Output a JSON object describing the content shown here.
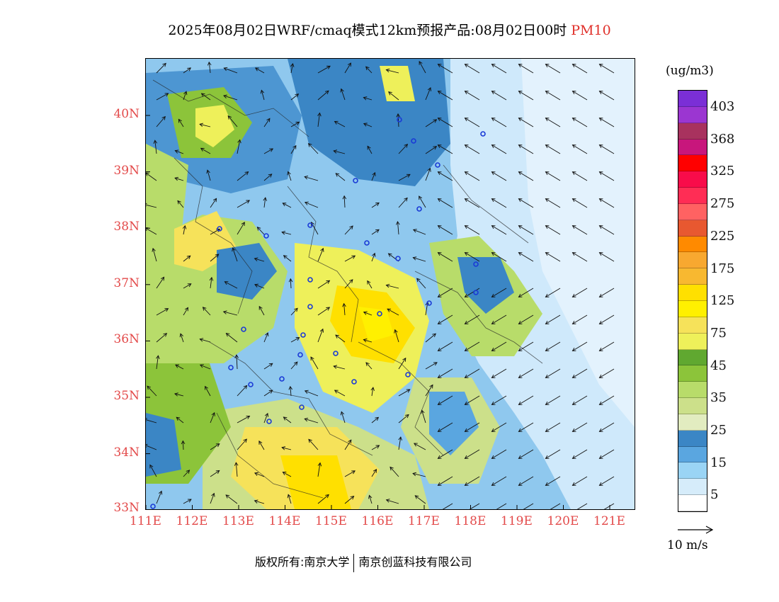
{
  "header": {
    "title": "2025年08月02日WRF/cmaq模式12km预报产品:08月02日00时",
    "pollutant": "PM10"
  },
  "map": {
    "lon_labels": [
      "111E",
      "112E",
      "113E",
      "114E",
      "115E",
      "116E",
      "117E",
      "118E",
      "119E",
      "120E",
      "121E"
    ],
    "lat_labels": [
      "40N",
      "39N",
      "38N",
      "37N",
      "36N",
      "35N",
      "34N",
      "33N"
    ],
    "lon_range": [
      111,
      121.3
    ],
    "lat_range": [
      33,
      41
    ]
  },
  "legend": {
    "unit": "(ug/m3)",
    "bins": [
      {
        "label": "403",
        "color": "#7b2fd6"
      },
      {
        "label": "",
        "color": "#9b36d1"
      },
      {
        "label": "368",
        "color": "#a8325e"
      },
      {
        "label": "",
        "color": "#c8167c"
      },
      {
        "label": "325",
        "color": "#ff0000"
      },
      {
        "label": "",
        "color": "#f80c4a"
      },
      {
        "label": "275",
        "color": "#ff2d55"
      },
      {
        "label": "",
        "color": "#ff6262"
      },
      {
        "label": "225",
        "color": "#e85830"
      },
      {
        "label": "",
        "color": "#ff8a00"
      },
      {
        "label": "175",
        "color": "#f8a830"
      },
      {
        "label": "",
        "color": "#f8b830"
      },
      {
        "label": "125",
        "color": "#ffe000"
      },
      {
        "label": "",
        "color": "#fff000"
      },
      {
        "label": "75",
        "color": "#f6e25a"
      },
      {
        "label": "",
        "color": "#eef05a"
      },
      {
        "label": "45",
        "color": "#60a830"
      },
      {
        "label": "",
        "color": "#8cc43a"
      },
      {
        "label": "35",
        "color": "#b8dc6a"
      },
      {
        "label": "",
        "color": "#cce08a"
      },
      {
        "label": "25",
        "color": "#e2ecc0"
      },
      {
        "label": "",
        "color": "#3b86c5"
      },
      {
        "label": "15",
        "color": "#5aa6e0"
      },
      {
        "label": "",
        "color": "#9ad4f5"
      },
      {
        "label": "5",
        "color": "#d6ecfa"
      },
      {
        "label": "",
        "color": "#ffffff"
      }
    ],
    "reference_arrow_label": "10 m/s"
  },
  "footer": {
    "copyright_prefix": "版权所有:南京大学",
    "company": "南京创蓝科技有限公司"
  }
}
